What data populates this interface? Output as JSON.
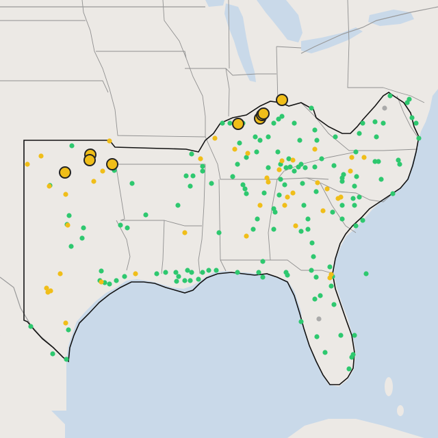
{
  "map": {
    "colors": {
      "water": "#c9d9e9",
      "land": "#ece9e5",
      "state_line": "#8f8f8f",
      "region_outline": "#111111",
      "green": "#2ec86f",
      "yellow": "#f0be19",
      "gray": "#aaaaaa",
      "large_stroke": "#222222"
    },
    "icons": {
      "small_green": "green-dot-icon",
      "small_yellow": "yellow-dot-icon",
      "small_gray": "gray-dot-icon",
      "large_yellow": "large-yellow-circle-icon"
    }
  }
}
